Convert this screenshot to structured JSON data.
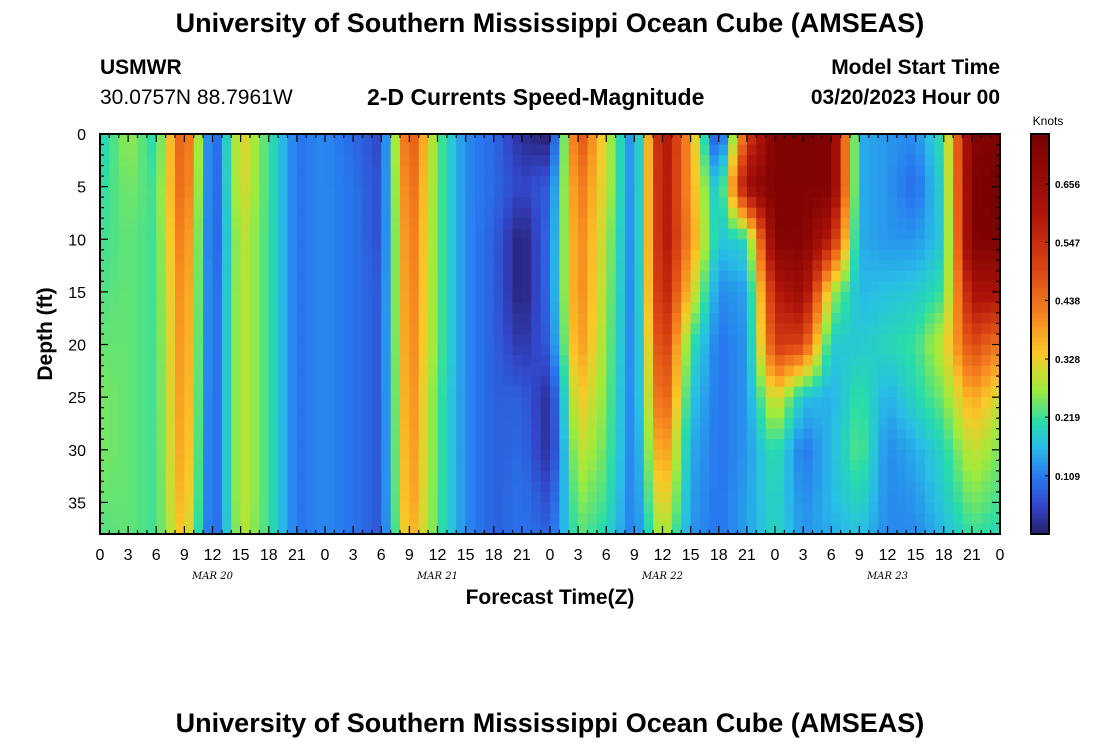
{
  "header": {
    "title": "University of Southern Mississippi Ocean Cube (AMSEAS)",
    "station_name": "USMWR",
    "station_coords": "30.0757N  88.7961W",
    "plot_title": "2-D Currents Speed-Magnitude",
    "model_start_label": "Model Start Time",
    "model_start_value": "03/20/2023 Hour 00"
  },
  "footer": {
    "repeated_title": "University of Southern Mississippi Ocean Cube (AMSEAS)"
  },
  "chart_data": {
    "type": "heatmap",
    "title": "2-D Currents Speed-Magnitude",
    "xlabel": "Forecast Time(Z)",
    "ylabel": "Depth (ft)",
    "x_unit": "forecast hour",
    "xlim": [
      0,
      96
    ],
    "ylim": [
      0,
      38
    ],
    "x_ticks": [
      0,
      3,
      6,
      9,
      12,
      15,
      18,
      21,
      24,
      27,
      30,
      33,
      36,
      39,
      42,
      45,
      48,
      51,
      54,
      57,
      60,
      63,
      66,
      69,
      72,
      75,
      78,
      81,
      84,
      87,
      90,
      93,
      96
    ],
    "x_tick_labels": [
      "0",
      "3",
      "6",
      "9",
      "12",
      "15",
      "18",
      "21",
      "0",
      "3",
      "6",
      "9",
      "12",
      "15",
      "18",
      "21",
      "0",
      "3",
      "6",
      "9",
      "12",
      "15",
      "18",
      "21",
      "0",
      "3",
      "6",
      "9",
      "12",
      "15",
      "18",
      "21",
      "0"
    ],
    "day_labels": [
      {
        "label": "MAR 20",
        "hour": 12
      },
      {
        "label": "MAR 21",
        "hour": 36
      },
      {
        "label": "MAR 22",
        "hour": 60
      },
      {
        "label": "MAR 23",
        "hour": 84
      }
    ],
    "y_ticks": [
      0,
      5,
      10,
      15,
      20,
      25,
      30,
      35
    ],
    "y_tick_labels": [
      "0",
      "5",
      "10",
      "15",
      "20",
      "25",
      "30",
      "35"
    ],
    "colorbar": {
      "unit": "Knots",
      "min": 0.0,
      "max": 0.75,
      "ticks": [
        0.109,
        0.219,
        0.328,
        0.438,
        0.547,
        0.656
      ],
      "tick_labels": [
        "0.109",
        "0.219",
        "0.328",
        "0.438",
        "0.547",
        "0.656"
      ]
    },
    "time_hours": [
      0,
      3,
      6,
      9,
      12,
      15,
      18,
      21,
      24,
      27,
      30,
      33,
      36,
      39,
      42,
      45,
      48,
      51,
      54,
      57,
      60,
      63,
      66,
      69,
      72,
      75,
      78,
      81,
      84,
      87,
      90,
      93,
      96
    ],
    "depth_ft": [
      0,
      5,
      10,
      15,
      20,
      25,
      30,
      35,
      38
    ],
    "speed_knots": [
      [
        0.19,
        0.27,
        0.2,
        0.5,
        0.05,
        0.33,
        0.22,
        0.1,
        0.12,
        0.09,
        0.05,
        0.5,
        0.24,
        0.12,
        0.09,
        0.02,
        0.0,
        0.5,
        0.3,
        0.1,
        0.63,
        0.38,
        0.02,
        0.5,
        0.73,
        0.73,
        0.73,
        0.15,
        0.13,
        0.12,
        0.22,
        0.72,
        0.72
      ],
      [
        0.21,
        0.25,
        0.22,
        0.48,
        0.05,
        0.32,
        0.22,
        0.1,
        0.12,
        0.1,
        0.06,
        0.47,
        0.24,
        0.12,
        0.09,
        0.05,
        0.08,
        0.44,
        0.3,
        0.1,
        0.62,
        0.38,
        0.15,
        0.65,
        0.73,
        0.73,
        0.73,
        0.15,
        0.13,
        0.09,
        0.2,
        0.73,
        0.76
      ],
      [
        0.22,
        0.24,
        0.22,
        0.45,
        0.05,
        0.3,
        0.22,
        0.1,
        0.12,
        0.1,
        0.06,
        0.45,
        0.24,
        0.12,
        0.08,
        0.0,
        0.1,
        0.42,
        0.28,
        0.1,
        0.62,
        0.4,
        0.17,
        0.2,
        0.72,
        0.72,
        0.58,
        0.15,
        0.13,
        0.13,
        0.18,
        0.73,
        0.73
      ],
      [
        0.23,
        0.24,
        0.22,
        0.43,
        0.06,
        0.3,
        0.22,
        0.1,
        0.12,
        0.1,
        0.07,
        0.44,
        0.24,
        0.12,
        0.08,
        0.0,
        0.1,
        0.42,
        0.27,
        0.1,
        0.6,
        0.33,
        0.12,
        0.14,
        0.58,
        0.66,
        0.28,
        0.16,
        0.17,
        0.18,
        0.22,
        0.62,
        0.62
      ],
      [
        0.24,
        0.24,
        0.22,
        0.42,
        0.06,
        0.3,
        0.22,
        0.1,
        0.12,
        0.1,
        0.07,
        0.43,
        0.24,
        0.12,
        0.08,
        0.03,
        0.08,
        0.4,
        0.26,
        0.1,
        0.55,
        0.22,
        0.1,
        0.13,
        0.52,
        0.5,
        0.18,
        0.18,
        0.2,
        0.22,
        0.3,
        0.5,
        0.42
      ],
      [
        0.25,
        0.24,
        0.22,
        0.41,
        0.06,
        0.3,
        0.22,
        0.1,
        0.12,
        0.1,
        0.07,
        0.42,
        0.23,
        0.12,
        0.08,
        0.08,
        0.02,
        0.35,
        0.25,
        0.1,
        0.5,
        0.18,
        0.1,
        0.13,
        0.33,
        0.17,
        0.15,
        0.22,
        0.15,
        0.2,
        0.25,
        0.38,
        0.3
      ],
      [
        0.25,
        0.24,
        0.22,
        0.4,
        0.06,
        0.3,
        0.22,
        0.1,
        0.12,
        0.1,
        0.07,
        0.41,
        0.23,
        0.12,
        0.08,
        0.09,
        0.02,
        0.3,
        0.24,
        0.1,
        0.42,
        0.15,
        0.1,
        0.13,
        0.22,
        0.1,
        0.16,
        0.24,
        0.12,
        0.15,
        0.2,
        0.3,
        0.25
      ],
      [
        0.24,
        0.24,
        0.22,
        0.38,
        0.06,
        0.3,
        0.22,
        0.1,
        0.12,
        0.1,
        0.07,
        0.4,
        0.23,
        0.12,
        0.08,
        0.1,
        0.06,
        0.26,
        0.22,
        0.1,
        0.35,
        0.14,
        0.1,
        0.14,
        0.2,
        0.12,
        0.16,
        0.2,
        0.12,
        0.13,
        0.18,
        0.25,
        0.22
      ],
      [
        0.23,
        0.24,
        0.22,
        0.36,
        0.06,
        0.29,
        0.22,
        0.1,
        0.12,
        0.1,
        0.07,
        0.38,
        0.23,
        0.12,
        0.08,
        0.1,
        0.08,
        0.24,
        0.2,
        0.1,
        0.3,
        0.13,
        0.1,
        0.14,
        0.2,
        0.13,
        0.15,
        0.17,
        0.12,
        0.12,
        0.16,
        0.22,
        0.2
      ]
    ]
  }
}
